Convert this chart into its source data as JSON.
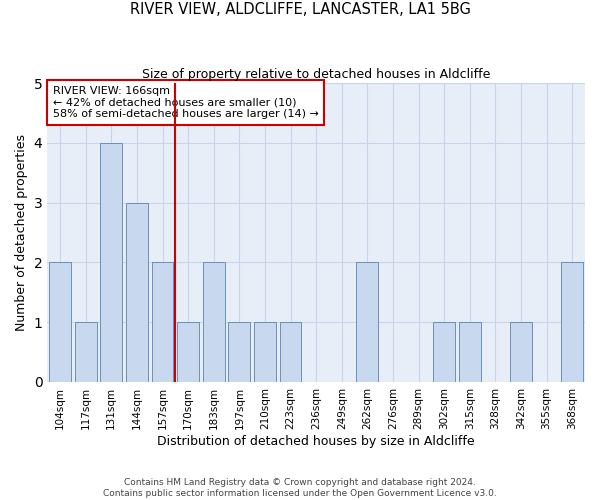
{
  "title": "RIVER VIEW, ALDCLIFFE, LANCASTER, LA1 5BG",
  "subtitle": "Size of property relative to detached houses in Aldcliffe",
  "xlabel": "Distribution of detached houses by size in Aldcliffe",
  "ylabel": "Number of detached properties",
  "footnote1": "Contains HM Land Registry data © Crown copyright and database right 2024.",
  "footnote2": "Contains public sector information licensed under the Open Government Licence v3.0.",
  "categories": [
    "104sqm",
    "117sqm",
    "131sqm",
    "144sqm",
    "157sqm",
    "170sqm",
    "183sqm",
    "197sqm",
    "210sqm",
    "223sqm",
    "236sqm",
    "249sqm",
    "262sqm",
    "276sqm",
    "289sqm",
    "302sqm",
    "315sqm",
    "328sqm",
    "342sqm",
    "355sqm",
    "368sqm"
  ],
  "values": [
    2,
    1,
    4,
    3,
    2,
    1,
    2,
    1,
    1,
    1,
    0,
    0,
    2,
    0,
    0,
    1,
    1,
    0,
    1,
    0,
    2
  ],
  "bar_color": "#c8d8ee",
  "bar_edge_color": "#6b8fbd",
  "grid_color": "#c8d4e8",
  "bg_color": "#e8eef8",
  "property_line_index": 5,
  "property_label": "RIVER VIEW: 166sqm",
  "annotation_line1": "← 42% of detached houses are smaller (10)",
  "annotation_line2": "58% of semi-detached houses are larger (14) →",
  "box_color": "#cc0000",
  "ylim": [
    0,
    5
  ],
  "yticks": [
    0,
    1,
    2,
    3,
    4,
    5
  ]
}
